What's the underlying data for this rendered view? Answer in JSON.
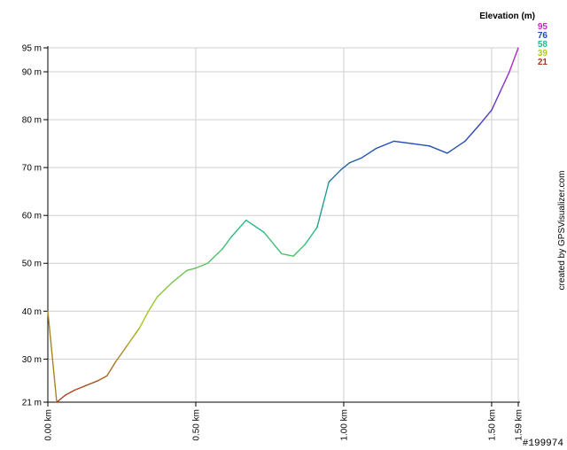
{
  "chart_data": {
    "type": "line",
    "x_unit": "km",
    "y_unit": "m",
    "ylim": [
      21,
      95
    ],
    "xlim": [
      0,
      1.59
    ],
    "y_ticks": [
      {
        "value": 21,
        "label": "21 m"
      },
      {
        "value": 30,
        "label": "30 m"
      },
      {
        "value": 40,
        "label": "40 m"
      },
      {
        "value": 50,
        "label": "50 m"
      },
      {
        "value": 60,
        "label": "60 m"
      },
      {
        "value": 70,
        "label": "70 m"
      },
      {
        "value": 80,
        "label": "80 m"
      },
      {
        "value": 90,
        "label": "90 m"
      },
      {
        "value": 95,
        "label": "95 m"
      }
    ],
    "x_ticks": [
      {
        "value": 0.0,
        "label": "0.00 km"
      },
      {
        "value": 0.5,
        "label": "0.50 km"
      },
      {
        "value": 1.0,
        "label": "1.00 km"
      },
      {
        "value": 1.5,
        "label": "1.50 km"
      },
      {
        "value": 1.59,
        "label": "1.59 km"
      }
    ],
    "grid": true,
    "legend": {
      "title": "Elevation (m)",
      "placement": "top-right",
      "entries": [
        {
          "label": "95",
          "color": "#cc22cc"
        },
        {
          "label": "76",
          "color": "#2244bb"
        },
        {
          "label": "58",
          "color": "#22bb88"
        },
        {
          "label": "39",
          "color": "#aacc22"
        },
        {
          "label": "21",
          "color": "#aa3322"
        }
      ]
    },
    "series": [
      {
        "x": [
          0.0,
          0.03,
          0.06,
          0.09,
          0.13,
          0.17,
          0.2,
          0.23,
          0.27,
          0.31,
          0.34,
          0.37,
          0.42,
          0.47,
          0.5,
          0.54,
          0.59,
          0.62,
          0.67,
          0.73,
          0.79,
          0.83,
          0.87,
          0.91,
          0.95,
          0.99,
          1.02,
          1.06,
          1.11,
          1.17,
          1.23,
          1.29,
          1.35,
          1.41,
          1.46,
          1.5,
          1.53,
          1.56,
          1.59
        ],
        "y": [
          40,
          21,
          22.5,
          23.5,
          24.5,
          25.5,
          26.5,
          29.5,
          33,
          36.5,
          40,
          43,
          46,
          48.5,
          49,
          50,
          53,
          55.5,
          59,
          56.5,
          52,
          51.5,
          54,
          57.5,
          67,
          69.5,
          71,
          72,
          74,
          75.5,
          75,
          74.5,
          73,
          75.5,
          79,
          82,
          86,
          90,
          95
        ]
      }
    ]
  },
  "credit": "created by GPSVisualizer.com",
  "image_id": "#199974"
}
